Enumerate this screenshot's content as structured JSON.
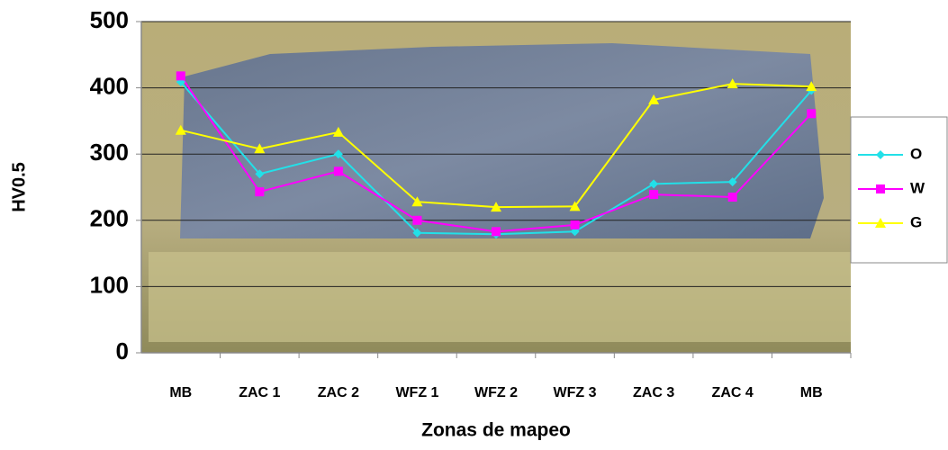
{
  "chart_data": {
    "type": "line",
    "x_label": "Zonas de mapeo",
    "y_label": "HV0.5",
    "categories": [
      "MB",
      "ZAC 1",
      "ZAC 2",
      "WFZ 1",
      "WFZ 2",
      "WFZ 3",
      "ZAC 3",
      "ZAC 4",
      "MB"
    ],
    "series": [
      {
        "name": "O",
        "color": "#22e0e8",
        "marker": "diamond",
        "values": [
          409,
          270,
          300,
          181,
          179,
          183,
          255,
          258,
          396
        ]
      },
      {
        "name": "W",
        "color": "#ff00ff",
        "marker": "square",
        "values": [
          418,
          243,
          274,
          200,
          183,
          193,
          239,
          235,
          361
        ]
      },
      {
        "name": "G",
        "color": "#ffff00",
        "marker": "triangle",
        "values": [
          336,
          308,
          333,
          228,
          220,
          221,
          382,
          406,
          402
        ]
      }
    ],
    "ylim": [
      0,
      500
    ],
    "yticks": [
      0,
      100,
      200,
      300,
      400,
      500
    ],
    "grid": true,
    "legend": "right"
  }
}
